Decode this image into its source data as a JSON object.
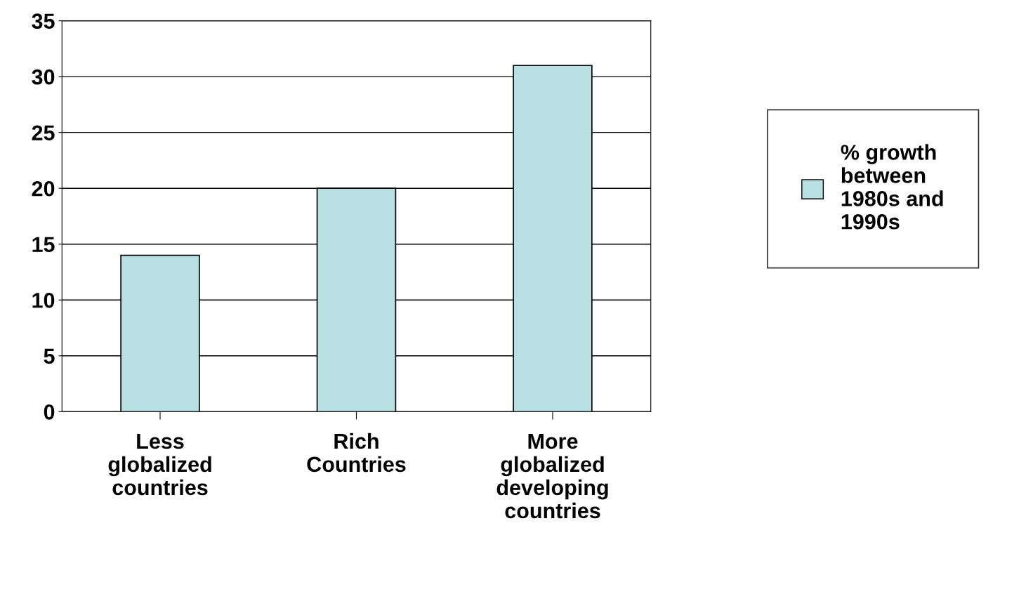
{
  "chart_data": {
    "type": "bar",
    "categories": [
      "Less\nglobalized\ncountries",
      "Rich\nCountries",
      "More\nglobalized\ndeveloping\ncountries"
    ],
    "series": [
      {
        "name": "% growth\nbetween\n1980s and\n1990s",
        "color": "#b8e0e2",
        "values": [
          14,
          20,
          31
        ]
      }
    ],
    "ylim": [
      0,
      35
    ],
    "yticks": [
      0,
      5,
      10,
      15,
      20,
      25,
      30,
      35
    ],
    "grid": "y",
    "legend": "right"
  }
}
